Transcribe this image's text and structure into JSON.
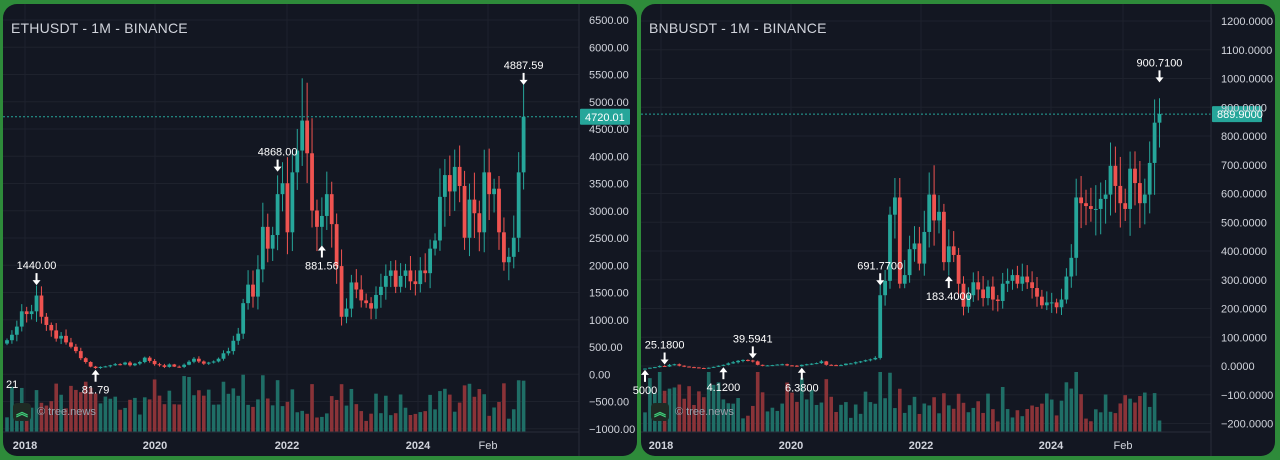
{
  "charts": [
    {
      "key": "eth",
      "title": "ETHUSDT - 1M - BINANCE",
      "watermark": "© tree.news",
      "y_ticks": [
        "6500.00",
        "6000.00",
        "5500.00",
        "5000.00",
        "4500.00",
        "4000.00",
        "3500.00",
        "3000.00",
        "2500.00",
        "2000.00",
        "1500.00",
        "1000.00",
        "500.00",
        "0.00",
        "−500.00",
        "−1000.00"
      ],
      "x_ticks": [
        "2018",
        "2020",
        "2022",
        "2024",
        "Feb"
      ],
      "current_price": "4720.01",
      "annotations": [
        {
          "label": "1440.00",
          "dir": "down"
        },
        {
          "label": "81.79",
          "dir": "up"
        },
        {
          "label": "4868.00",
          "dir": "down"
        },
        {
          "label": "881.56",
          "dir": "up"
        },
        {
          "label": "4887.59",
          "dir": "down"
        }
      ],
      "edge_label": "21"
    },
    {
      "key": "bnb",
      "title": "BNBUSDT - 1M - BINANCE",
      "watermark": "© tree.news",
      "y_ticks": [
        "1200.0000",
        "1100.0000",
        "1000.0000",
        "900.0000",
        "800.0000",
        "700.0000",
        "600.0000",
        "500.0000",
        "400.0000",
        "300.0000",
        "200.0000",
        "100.0000",
        "0.0000",
        "−100.0000",
        "−200.0000"
      ],
      "x_ticks": [
        "2018",
        "2020",
        "2022",
        "2024",
        "Feb"
      ],
      "current_price": "889.9000",
      "annotations": [
        {
          "label": "25.1800",
          "dir": "down"
        },
        {
          "label": "5000",
          "dir": "up"
        },
        {
          "label": "4.1200",
          "dir": "up"
        },
        {
          "label": "39.5941",
          "dir": "down"
        },
        {
          "label": "6.3800",
          "dir": "up"
        },
        {
          "label": "691.7700",
          "dir": "down"
        },
        {
          "label": "183.4000",
          "dir": "up"
        },
        {
          "label": "900.7100",
          "dir": "down"
        }
      ]
    }
  ],
  "chart_data": [
    {
      "type": "candlestick",
      "title": "ETHUSDT - 1M - BINANCE",
      "interval": "1M",
      "ylim": [
        -1000,
        6500
      ],
      "close": [
        620,
        720,
        870,
        1150,
        1100,
        1150,
        1440,
        1050,
        900,
        800,
        650,
        700,
        580,
        500,
        420,
        290,
        220,
        135,
        110,
        130,
        140,
        160,
        180,
        175,
        210,
        160,
        190,
        220,
        300,
        240,
        180,
        160,
        130,
        175,
        135,
        130,
        170,
        225,
        280,
        230,
        190,
        210,
        230,
        280,
        380,
        420,
        610,
        740,
        1300,
        1640,
        1420,
        1920,
        2700,
        2300,
        2550,
        3300,
        3500,
        2600,
        3700,
        4100,
        4650,
        4050,
        3000,
        2700,
        2900,
        3300,
        2750,
        1980,
        1050,
        1200,
        1680,
        1550,
        1350,
        1300,
        1200,
        1450,
        1600,
        1800,
        1900,
        1600,
        1800,
        1900,
        1700,
        1650,
        1900,
        1850,
        2300,
        2450,
        3250,
        3650,
        3350,
        3800,
        3450,
        2500,
        3200,
        2950,
        2600,
        3700,
        3300,
        3400,
        2600,
        2050,
        2150,
        2500,
        3700,
        4720
      ],
      "annotations": [
        "1440.00",
        "81.79",
        "4868.00",
        "881.56",
        "4887.59"
      ],
      "last_price": 4720.01
    },
    {
      "type": "candlestick",
      "title": "BNBUSDT - 1M - BINANCE",
      "interval": "1M",
      "ylim": [
        -200,
        1200
      ],
      "close": [
        5,
        8,
        10,
        14,
        12,
        18,
        20,
        15,
        12,
        10,
        9,
        7,
        5,
        8,
        11,
        15,
        18,
        23,
        27,
        32,
        35,
        33,
        30,
        18,
        15,
        16,
        17,
        19,
        20,
        16,
        15,
        13,
        18,
        20,
        22,
        24,
        30,
        18,
        17,
        16,
        17,
        22,
        23,
        27,
        30,
        34,
        37,
        42,
        260,
        310,
        540,
        600,
        300,
        330,
        420,
        440,
        370,
        480,
        610,
        520,
        550,
        375,
        430,
        400,
        300,
        220,
        260,
        305,
        280,
        250,
        290,
        245,
        240,
        300,
        310,
        330,
        300,
        325,
        305,
        285,
        255,
        225,
        235,
        235,
        218,
        245,
        325,
        390,
        600,
        580,
        570,
        560,
        560,
        595,
        610,
        710,
        640,
        580,
        560,
        700,
        650,
        580,
        610,
        720,
        860,
        889.9
      ],
      "annotations": [
        "25.1800",
        "5000",
        "4.1200",
        "39.5941",
        "6.3800",
        "691.7700",
        "183.4000",
        "900.7100"
      ],
      "last_price": 889.9
    }
  ]
}
